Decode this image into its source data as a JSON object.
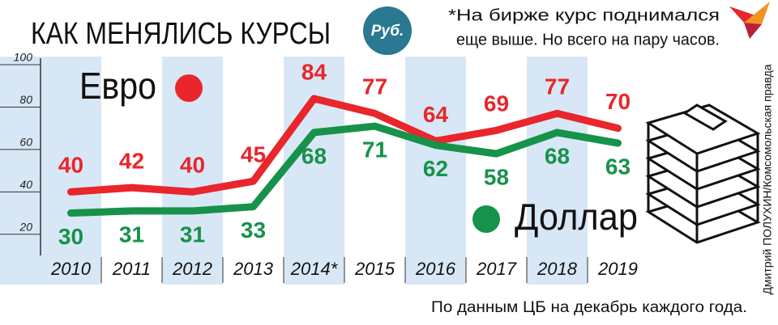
{
  "chart_data": {
    "type": "line",
    "title": "КАК МЕНЯЛИСЬ КУРСЫ",
    "badge": "Руб.",
    "note_lines": [
      "*На бирже курс поднимался",
      "еще выше. Но всего на пару часов."
    ],
    "source": "По данным ЦБ на декабрь каждого года.",
    "credit": "Дмитрий ПОЛУХИН/Комсомольская правда",
    "categories": [
      "2010",
      "2011",
      "2012",
      "2013",
      "2014*",
      "2015",
      "2016",
      "2017",
      "2018",
      "2019"
    ],
    "series": [
      {
        "name": "Евро",
        "color": "#e8262b",
        "values": [
          40,
          42,
          40,
          45,
          84,
          77,
          64,
          69,
          77,
          70
        ]
      },
      {
        "name": "Доллар",
        "color": "#17924a",
        "values": [
          30,
          31,
          31,
          33,
          68,
          71,
          62,
          58,
          68,
          63
        ]
      }
    ],
    "ylim": [
      10,
      100
    ],
    "yticks": [
      20,
      40,
      60,
      80,
      100
    ]
  }
}
